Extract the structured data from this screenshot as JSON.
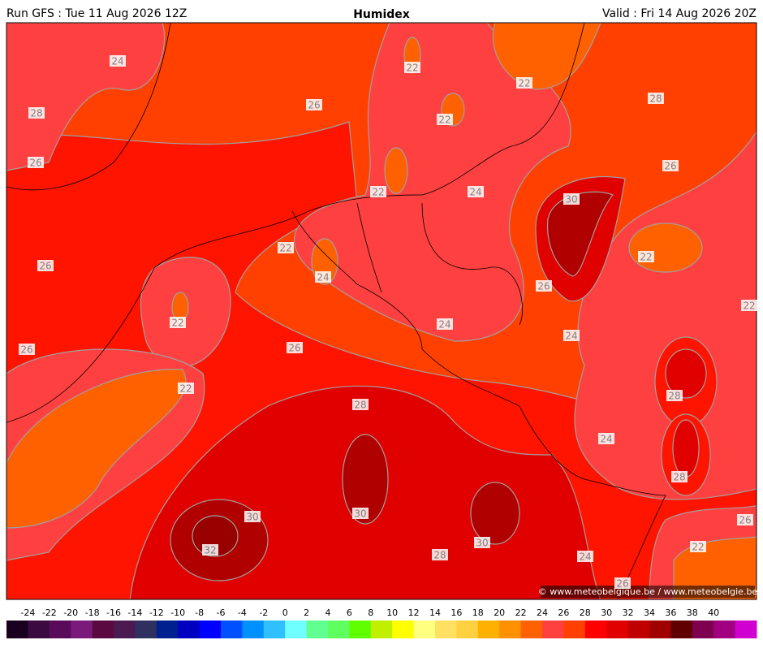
{
  "header": {
    "run": "Run GFS : Tue 11 Aug 2026 12Z",
    "title": "Humidex",
    "valid": "Valid : Fri 14 Aug 2026 20Z"
  },
  "map": {
    "contour_labels": [
      24,
      28,
      26,
      22,
      22,
      28,
      22,
      26,
      26,
      22,
      24,
      30,
      22,
      26,
      24,
      22,
      26,
      22,
      22,
      24,
      24,
      26,
      26,
      28,
      22,
      28,
      24,
      28,
      30,
      30,
      26,
      30,
      22,
      32,
      28,
      24,
      26
    ],
    "copyright": "© www.meteobelgique.be / www.meteobelgie.be"
  },
  "colorbar": {
    "ticks": [
      -24,
      -22,
      -20,
      -18,
      -16,
      -14,
      -12,
      -10,
      -8,
      -6,
      -4,
      -2,
      0,
      2,
      4,
      6,
      8,
      10,
      12,
      14,
      16,
      18,
      20,
      22,
      24,
      26,
      28,
      30,
      32,
      34,
      36,
      38,
      40
    ],
    "colors": [
      "#1a0020",
      "#3a0a40",
      "#5a0a5a",
      "#7a1a7a",
      "#5a0a40",
      "#4a1a50",
      "#303060",
      "#002090",
      "#0000c0",
      "#0000ff",
      "#0050ff",
      "#0090ff",
      "#30c0ff",
      "#70ffff",
      "#60ff90",
      "#60ff60",
      "#60ff00",
      "#c0f000",
      "#ffff00",
      "#ffff80",
      "#ffe060",
      "#ffd040",
      "#ffb000",
      "#ff9000",
      "#ff6000",
      "#ff4040",
      "#ff4000",
      "#ff0000",
      "#e00000",
      "#c00000",
      "#a00000",
      "#600000",
      "#800050",
      "#a00080",
      "#d000d0"
    ]
  }
}
